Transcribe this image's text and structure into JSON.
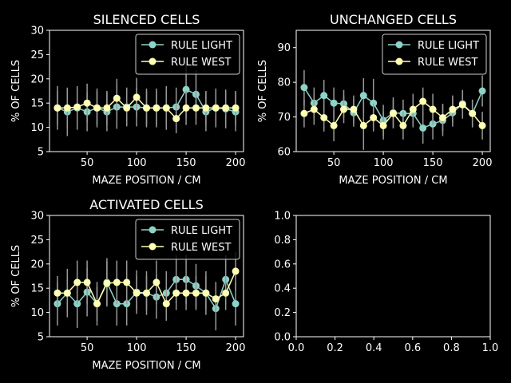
{
  "colors": {
    "background": "#000000",
    "axes": "#ffffff",
    "light_series": "#8dd3c7",
    "west_series": "#ffffb3",
    "error_bars": "#999999"
  },
  "chart_data": [
    {
      "type": "line",
      "title": "SILENCED CELLS",
      "xlabel": "MAZE POSITION / CM",
      "ylabel": "% OF CELLS",
      "xlim": [
        12,
        208
      ],
      "ylim": [
        5,
        30
      ],
      "xticks": [
        50,
        100,
        150,
        200
      ],
      "yticks": [
        5,
        10,
        15,
        20,
        25,
        30
      ],
      "legend": "top-right",
      "x": [
        20,
        30,
        40,
        50,
        60,
        70,
        80,
        90,
        100,
        110,
        120,
        130,
        140,
        150,
        160,
        170,
        180,
        190,
        200
      ],
      "series": [
        {
          "name": "RULE LIGHT",
          "values": [
            14.0,
            13.2,
            14.0,
            13.2,
            14.0,
            13.2,
            14.2,
            14.2,
            14.2,
            14.0,
            14.0,
            14.0,
            14.2,
            17.8,
            16.8,
            13.2,
            14.0,
            13.8,
            13.2
          ],
          "errors": [
            4.5,
            5.0,
            4.5,
            4.0,
            4.0,
            4.0,
            4.5,
            4.0,
            4.0,
            4.0,
            4.0,
            4.5,
            4.0,
            6.0,
            5.0,
            4.0,
            4.0,
            4.0,
            4.0
          ]
        },
        {
          "name": "RULE WEST",
          "values": [
            14.0,
            14.0,
            14.2,
            15.0,
            14.0,
            14.0,
            16.0,
            14.0,
            16.2,
            14.0,
            14.0,
            14.0,
            11.8,
            14.0,
            14.0,
            14.0,
            14.0,
            14.0,
            14.0
          ],
          "errors": [
            3.5,
            4.0,
            3.5,
            4.0,
            3.5,
            3.5,
            4.0,
            3.5,
            4.0,
            3.5,
            3.5,
            3.5,
            3.0,
            3.5,
            3.5,
            3.5,
            3.5,
            3.5,
            3.5
          ]
        }
      ]
    },
    {
      "type": "line",
      "title": "UNCHANGED CELLS",
      "xlabel": "MAZE POSITION / CM",
      "ylabel": "% OF CELLS",
      "xlim": [
        12,
        208
      ],
      "ylim": [
        60,
        95
      ],
      "xticks": [
        50,
        100,
        150,
        200
      ],
      "yticks": [
        60,
        70,
        80,
        90
      ],
      "legend": "top-right",
      "x": [
        20,
        30,
        40,
        50,
        60,
        70,
        80,
        90,
        100,
        110,
        120,
        130,
        140,
        150,
        160,
        170,
        180,
        190,
        200
      ],
      "series": [
        {
          "name": "RULE LIGHT",
          "values": [
            78.5,
            74.0,
            76.2,
            74.0,
            73.8,
            71.2,
            76.2,
            74.0,
            69.0,
            71.2,
            71.0,
            71.0,
            66.8,
            68.0,
            69.0,
            71.2,
            73.8,
            71.0,
            77.5
          ],
          "errors": [
            5.0,
            4.5,
            4.5,
            4.5,
            4.0,
            4.0,
            5.0,
            7.0,
            4.5,
            4.5,
            4.0,
            4.0,
            4.5,
            4.5,
            4.5,
            4.0,
            4.0,
            4.0,
            4.5
          ]
        },
        {
          "name": "RULE WEST",
          "values": [
            71.0,
            72.2,
            69.8,
            67.5,
            72.2,
            72.2,
            67.5,
            69.8,
            67.5,
            71.0,
            67.5,
            72.2,
            74.5,
            72.2,
            69.8,
            72.2,
            73.5,
            71.0,
            67.5
          ],
          "errors": [
            4.0,
            4.5,
            4.0,
            4.5,
            4.0,
            4.0,
            7.0,
            4.0,
            4.0,
            4.0,
            4.0,
            4.5,
            4.0,
            4.5,
            4.0,
            4.0,
            4.0,
            4.0,
            4.0
          ]
        }
      ]
    },
    {
      "type": "line",
      "title": "ACTIVATED CELLS",
      "xlabel": "MAZE POSITION / CM",
      "ylabel": "% OF CELLS",
      "xlim": [
        12,
        208
      ],
      "ylim": [
        5,
        30
      ],
      "xticks": [
        50,
        100,
        150,
        200
      ],
      "yticks": [
        5,
        10,
        15,
        20,
        25,
        30
      ],
      "legend": "top-right",
      "x": [
        20,
        30,
        40,
        50,
        60,
        70,
        80,
        90,
        100,
        110,
        120,
        130,
        140,
        150,
        160,
        170,
        180,
        190,
        200
      ],
      "series": [
        {
          "name": "RULE LIGHT",
          "values": [
            11.8,
            14.0,
            11.8,
            14.2,
            11.8,
            16.2,
            11.8,
            11.8,
            14.2,
            14.0,
            13.2,
            14.0,
            16.8,
            16.8,
            15.5,
            14.0,
            10.8,
            16.8,
            11.8
          ],
          "errors": [
            4.5,
            5.0,
            5.0,
            5.0,
            4.5,
            5.0,
            4.5,
            4.5,
            4.5,
            4.5,
            4.5,
            4.5,
            5.0,
            5.0,
            4.5,
            4.5,
            4.5,
            5.0,
            4.5
          ]
        },
        {
          "name": "RULE WEST",
          "values": [
            14.0,
            14.0,
            16.2,
            16.2,
            11.8,
            16.0,
            16.2,
            16.2,
            14.0,
            14.0,
            16.2,
            11.8,
            14.0,
            14.0,
            14.0,
            14.0,
            12.8,
            14.0,
            18.5
          ],
          "errors": [
            3.5,
            4.0,
            4.5,
            4.5,
            3.5,
            4.5,
            4.5,
            4.5,
            3.5,
            3.5,
            4.5,
            3.5,
            3.5,
            3.5,
            3.5,
            3.5,
            3.5,
            3.5,
            4.0
          ]
        }
      ]
    },
    {
      "type": "line",
      "title": "",
      "xlabel": "",
      "ylabel": "",
      "xlim": [
        0,
        1
      ],
      "ylim": [
        0,
        1
      ],
      "xticks": [
        "0.0",
        "0.2",
        "0.4",
        "0.6",
        "0.8",
        "1.0"
      ],
      "yticks": [
        "0.0",
        "0.2",
        "0.4",
        "0.6",
        "0.8",
        "1.0"
      ],
      "legend": "none",
      "x": [],
      "series": []
    }
  ]
}
